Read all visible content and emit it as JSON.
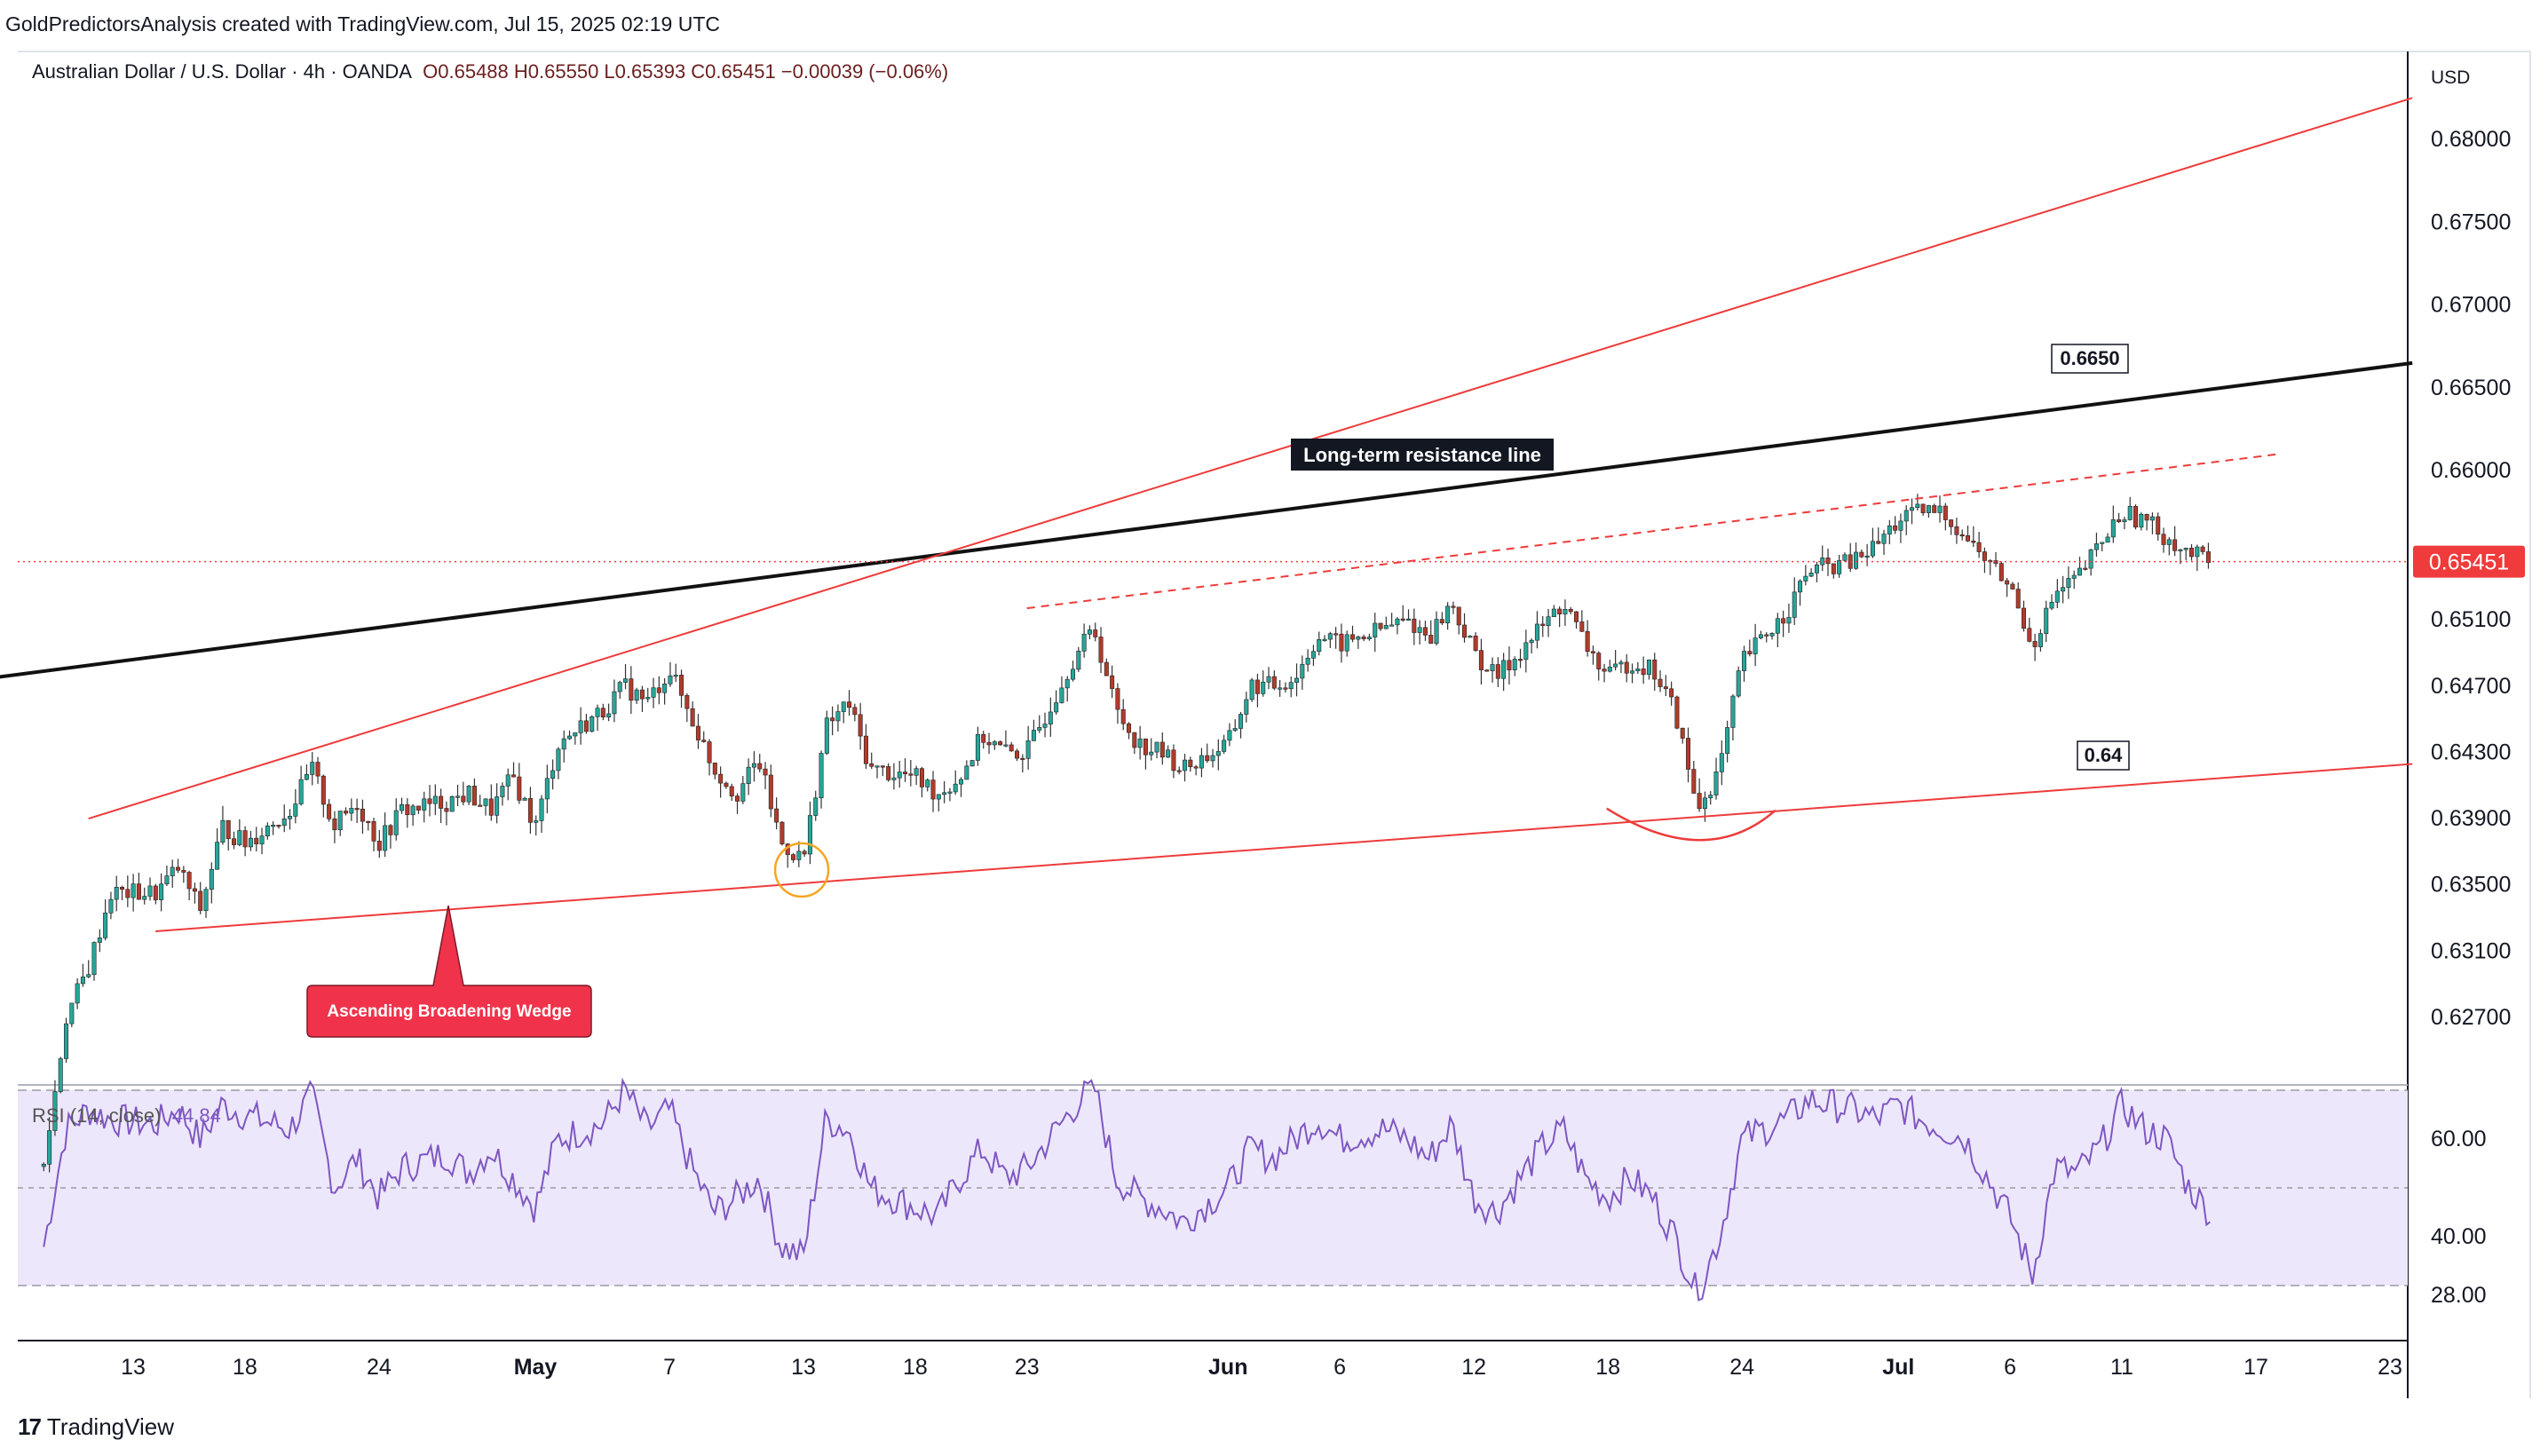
{
  "header": {
    "attribution": "GoldPredictorsAnalysis created with TradingView.com, Jul 15, 2025 02:19 UTC"
  },
  "legend": {
    "symbol": "Australian Dollar / U.S. Dollar · 4h · OANDA",
    "ohlc": "O0.65488  H0.65550  L0.65393  C0.65451  −0.00039 (−0.06%)"
  },
  "rsi_legend": {
    "label": "RSI (14, close)",
    "value": "44.84"
  },
  "branding": {
    "icon": "tradingview-logo-icon",
    "name": "TradingView"
  },
  "colors": {
    "up": "#26a69a",
    "down": "#b23b2c",
    "wick": "#333333",
    "wedge": "#ee3b3b",
    "resistance": "#111111",
    "rsi_line": "#7e57c2",
    "rsi_band": "#ede7fb",
    "price_badge": "#ef3b3b",
    "circle": "#f5a623"
  },
  "chart_data": {
    "type": "candlestick",
    "symbol": "AUDUSD",
    "timeframe": "4h",
    "currency_label": "USD",
    "last_price": "0.65451",
    "y_ticks": [
      "0.68000",
      "0.67500",
      "0.67000",
      "0.66500",
      "0.66000",
      "0.65100",
      "0.64700",
      "0.64300",
      "0.63900",
      "0.63500",
      "0.63100",
      "0.62700"
    ],
    "x_ticks": [
      {
        "label": "13",
        "date": "2025-04-13",
        "bold": false
      },
      {
        "label": "18",
        "date": "2025-04-18",
        "bold": false
      },
      {
        "label": "24",
        "date": "2025-04-24",
        "bold": false
      },
      {
        "label": "May",
        "date": "2025-05-01",
        "bold": true
      },
      {
        "label": "7",
        "date": "2025-05-07",
        "bold": false
      },
      {
        "label": "13",
        "date": "2025-05-13",
        "bold": false
      },
      {
        "label": "18",
        "date": "2025-05-18",
        "bold": false
      },
      {
        "label": "23",
        "date": "2025-05-23",
        "bold": false
      },
      {
        "label": "Jun",
        "date": "2025-06-01",
        "bold": true
      },
      {
        "label": "6",
        "date": "2025-06-06",
        "bold": false
      },
      {
        "label": "12",
        "date": "2025-06-12",
        "bold": false
      },
      {
        "label": "18",
        "date": "2025-06-18",
        "bold": false
      },
      {
        "label": "24",
        "date": "2025-06-24",
        "bold": false
      },
      {
        "label": "Jul",
        "date": "2025-07-01",
        "bold": true
      },
      {
        "label": "6",
        "date": "2025-07-06",
        "bold": false
      },
      {
        "label": "11",
        "date": "2025-07-11",
        "bold": false
      },
      {
        "label": "17",
        "date": "2025-07-17",
        "bold": false
      },
      {
        "label": "23",
        "date": "2025-07-23",
        "bold": false
      }
    ],
    "price_path": [
      [
        "2025-04-09",
        0.618
      ],
      [
        "2025-04-10",
        0.627
      ],
      [
        "2025-04-11",
        0.63
      ],
      [
        "2025-04-12",
        0.6345
      ],
      [
        "2025-04-14",
        0.6345
      ],
      [
        "2025-04-15",
        0.636
      ],
      [
        "2025-04-16",
        0.6335
      ],
      [
        "2025-04-17",
        0.6385
      ],
      [
        "2025-04-18",
        0.6375
      ],
      [
        "2025-04-20",
        0.6395
      ],
      [
        "2025-04-21",
        0.642
      ],
      [
        "2025-04-22",
        0.6385
      ],
      [
        "2025-04-23",
        0.64
      ],
      [
        "2025-04-24",
        0.6375
      ],
      [
        "2025-04-25",
        0.6395
      ],
      [
        "2025-04-27",
        0.64
      ],
      [
        "2025-04-28",
        0.6405
      ],
      [
        "2025-04-29",
        0.6395
      ],
      [
        "2025-04-30",
        0.6415
      ],
      [
        "2025-05-01",
        0.6385
      ],
      [
        "2025-05-02",
        0.6435
      ],
      [
        "2025-05-04",
        0.6455
      ],
      [
        "2025-05-05",
        0.647
      ],
      [
        "2025-05-06",
        0.646
      ],
      [
        "2025-05-07",
        0.648
      ],
      [
        "2025-05-08",
        0.645
      ],
      [
        "2025-05-09",
        0.642
      ],
      [
        "2025-05-10",
        0.6405
      ],
      [
        "2025-05-11",
        0.6425
      ],
      [
        "2025-05-12",
        0.6375
      ],
      [
        "2025-05-13",
        0.6365
      ],
      [
        "2025-05-14",
        0.6445
      ],
      [
        "2025-05-15",
        0.646
      ],
      [
        "2025-05-16",
        0.642
      ],
      [
        "2025-05-18",
        0.6415
      ],
      [
        "2025-05-19",
        0.6405
      ],
      [
        "2025-05-20",
        0.6415
      ],
      [
        "2025-05-21",
        0.644
      ],
      [
        "2025-05-22",
        0.643
      ],
      [
        "2025-05-23",
        0.643
      ],
      [
        "2025-05-25",
        0.6485
      ],
      [
        "2025-05-26",
        0.6505
      ],
      [
        "2025-05-27",
        0.6455
      ],
      [
        "2025-05-28",
        0.6435
      ],
      [
        "2025-05-29",
        0.643
      ],
      [
        "2025-05-30",
        0.642
      ],
      [
        "2025-06-01",
        0.6435
      ],
      [
        "2025-06-02",
        0.647
      ],
      [
        "2025-06-03",
        0.647
      ],
      [
        "2025-06-04",
        0.6475
      ],
      [
        "2025-06-05",
        0.65
      ],
      [
        "2025-06-06",
        0.6495
      ],
      [
        "2025-06-08",
        0.6505
      ],
      [
        "2025-06-09",
        0.651
      ],
      [
        "2025-06-10",
        0.65
      ],
      [
        "2025-06-11",
        0.652
      ],
      [
        "2025-06-12",
        0.649
      ],
      [
        "2025-06-13",
        0.6475
      ],
      [
        "2025-06-15",
        0.6505
      ],
      [
        "2025-06-16",
        0.652
      ],
      [
        "2025-06-17",
        0.6495
      ],
      [
        "2025-06-18",
        0.6475
      ],
      [
        "2025-06-19",
        0.6485
      ],
      [
        "2025-06-20",
        0.648
      ],
      [
        "2025-06-21",
        0.6455
      ],
      [
        "2025-06-22",
        0.6395
      ],
      [
        "2025-06-23",
        0.642
      ],
      [
        "2025-06-24",
        0.6485
      ],
      [
        "2025-06-25",
        0.65
      ],
      [
        "2025-06-26",
        0.6515
      ],
      [
        "2025-06-27",
        0.654
      ],
      [
        "2025-06-29",
        0.6545
      ],
      [
        "2025-06-30",
        0.6555
      ],
      [
        "2025-07-01",
        0.657
      ],
      [
        "2025-07-02",
        0.6575
      ],
      [
        "2025-07-03",
        0.6575
      ],
      [
        "2025-07-04",
        0.656
      ],
      [
        "2025-07-06",
        0.653
      ],
      [
        "2025-07-07",
        0.6495
      ],
      [
        "2025-07-08",
        0.6525
      ],
      [
        "2025-07-09",
        0.6535
      ],
      [
        "2025-07-10",
        0.6555
      ],
      [
        "2025-07-11",
        0.6575
      ],
      [
        "2025-07-12",
        0.657
      ],
      [
        "2025-07-13",
        0.656
      ],
      [
        "2025-07-14",
        0.655
      ],
      [
        "2025-07-15",
        0.65451
      ]
    ],
    "rsi": {
      "label": "RSI (14, close)",
      "last": 44.84,
      "y_ticks": [
        "60.00",
        "40.00",
        "28.00"
      ],
      "bands": [
        70,
        50,
        30
      ],
      "path": [
        [
          "2025-04-09",
          38
        ],
        [
          "2025-04-10",
          62
        ],
        [
          "2025-04-11",
          66
        ],
        [
          "2025-04-12",
          64
        ],
        [
          "2025-04-14",
          63
        ],
        [
          "2025-04-15",
          66
        ],
        [
          "2025-04-16",
          60
        ],
        [
          "2025-04-17",
          67
        ],
        [
          "2025-04-18",
          65
        ],
        [
          "2025-04-20",
          62
        ],
        [
          "2025-04-21",
          69
        ],
        [
          "2025-04-22",
          50
        ],
        [
          "2025-04-23",
          56
        ],
        [
          "2025-04-24",
          48
        ],
        [
          "2025-04-25",
          54
        ],
        [
          "2025-04-27",
          57
        ],
        [
          "2025-04-28",
          53
        ],
        [
          "2025-04-29",
          58
        ],
        [
          "2025-04-30",
          52
        ],
        [
          "2025-05-01",
          46
        ],
        [
          "2025-05-02",
          60
        ],
        [
          "2025-05-04",
          63
        ],
        [
          "2025-05-05",
          70
        ],
        [
          "2025-05-06",
          62
        ],
        [
          "2025-05-07",
          66
        ],
        [
          "2025-05-08",
          54
        ],
        [
          "2025-05-09",
          45
        ],
        [
          "2025-05-10",
          48
        ],
        [
          "2025-05-11",
          52
        ],
        [
          "2025-05-12",
          38
        ],
        [
          "2025-05-13",
          36
        ],
        [
          "2025-05-14",
          64
        ],
        [
          "2025-05-15",
          62
        ],
        [
          "2025-05-16",
          50
        ],
        [
          "2025-05-18",
          46
        ],
        [
          "2025-05-19",
          44
        ],
        [
          "2025-05-20",
          52
        ],
        [
          "2025-05-21",
          58
        ],
        [
          "2025-05-22",
          52
        ],
        [
          "2025-05-23",
          54
        ],
        [
          "2025-05-25",
          66
        ],
        [
          "2025-05-26",
          71
        ],
        [
          "2025-05-27",
          52
        ],
        [
          "2025-05-28",
          48
        ],
        [
          "2025-05-29",
          46
        ],
        [
          "2025-05-30",
          43
        ],
        [
          "2025-06-01",
          50
        ],
        [
          "2025-06-02",
          58
        ],
        [
          "2025-06-03",
          56
        ],
        [
          "2025-06-04",
          60
        ],
        [
          "2025-06-05",
          64
        ],
        [
          "2025-06-06",
          60
        ],
        [
          "2025-06-08",
          62
        ],
        [
          "2025-06-09",
          60
        ],
        [
          "2025-06-10",
          56
        ],
        [
          "2025-06-11",
          63
        ],
        [
          "2025-06-12",
          48
        ],
        [
          "2025-06-13",
          45
        ],
        [
          "2025-06-15",
          58
        ],
        [
          "2025-06-16",
          62
        ],
        [
          "2025-06-17",
          52
        ],
        [
          "2025-06-18",
          48
        ],
        [
          "2025-06-19",
          52
        ],
        [
          "2025-06-20",
          48
        ],
        [
          "2025-06-21",
          40
        ],
        [
          "2025-06-22",
          28
        ],
        [
          "2025-06-23",
          40
        ],
        [
          "2025-06-24",
          60
        ],
        [
          "2025-06-25",
          62
        ],
        [
          "2025-06-26",
          64
        ],
        [
          "2025-06-27",
          68
        ],
        [
          "2025-06-29",
          66
        ],
        [
          "2025-06-30",
          64
        ],
        [
          "2025-07-01",
          67
        ],
        [
          "2025-07-02",
          64
        ],
        [
          "2025-07-03",
          62
        ],
        [
          "2025-07-04",
          60
        ],
        [
          "2025-07-06",
          44
        ],
        [
          "2025-07-07",
          32
        ],
        [
          "2025-07-08",
          54
        ],
        [
          "2025-07-09",
          53
        ],
        [
          "2025-07-10",
          58
        ],
        [
          "2025-07-11",
          67
        ],
        [
          "2025-07-12",
          62
        ],
        [
          "2025-07-13",
          60
        ],
        [
          "2025-07-14",
          50
        ],
        [
          "2025-07-15",
          44.84
        ]
      ]
    },
    "annotations": {
      "resistance_label": "Long-term resistance line",
      "resistance_level": "0.6650",
      "support_level": "0.64",
      "wedge_label": "Ascending Broadening Wedge",
      "resistance_line": [
        [
          "2025-04-05",
          0.6472
        ],
        [
          "2025-07-24",
          0.6665
        ]
      ],
      "wedge_upper": [
        [
          "2025-04-11",
          0.639
        ],
        [
          "2025-07-24",
          0.6825
        ]
      ],
      "wedge_lower": [
        [
          "2025-04-14",
          0.6322
        ],
        [
          "2025-07-24",
          0.6423
        ]
      ],
      "dashed_line": [
        [
          "2025-05-23",
          0.6517
        ],
        [
          "2025-07-18",
          0.661
        ]
      ]
    }
  }
}
